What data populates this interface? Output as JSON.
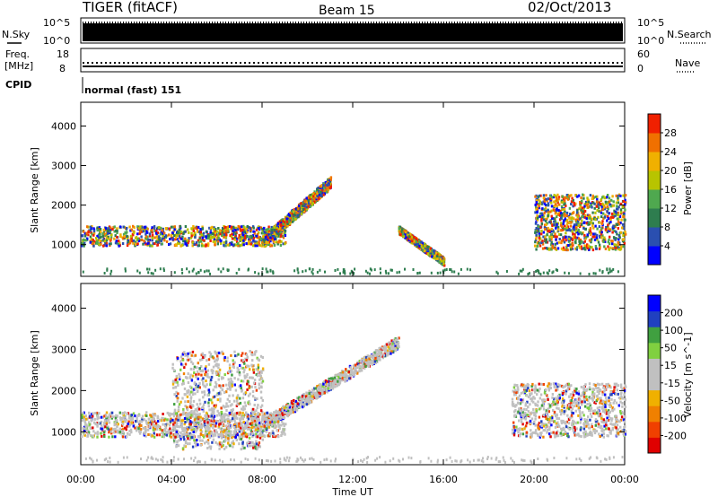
{
  "header": {
    "title": "TIGER (fitACF)",
    "beam": "Beam 15",
    "date": "02/Oct/2013"
  },
  "strips": {
    "nsky_label": "N.Sky",
    "nsky_ticks": [
      "10^5",
      "10^0"
    ],
    "nsearch_label": "N.Search",
    "nsearch_ticks": [
      "10^5",
      "10^0"
    ],
    "freq_label": "Freq.",
    "freq_unit": "[MHz]",
    "freq_ticks": [
      "18",
      "8"
    ],
    "nave_label": "Nave",
    "nave_ticks": [
      "60",
      "0"
    ],
    "cpid_label": "CPID",
    "cpid_text": "normal (fast) 151"
  },
  "chart_data": [
    {
      "type": "heatmap",
      "name": "power-panel",
      "ylabel": "Slant Range [km]",
      "yticks": [
        "1000",
        "2000",
        "3000",
        "4000"
      ],
      "ylim": [
        200,
        4600
      ],
      "xlim_hours": [
        0,
        24
      ],
      "colorbar": {
        "label": "Power [dB]",
        "ticks": [
          "28",
          "24",
          "20",
          "16",
          "12",
          "8",
          "4"
        ],
        "colors": [
          "#0000ff",
          "#2a4fb0",
          "#2e7d4f",
          "#4fa84f",
          "#b8c400",
          "#f0b000",
          "#f07000",
          "#f02000"
        ]
      },
      "features": [
        {
          "label": "band",
          "t_hours": [
            0,
            9
          ],
          "range_km": [
            1000,
            1500
          ]
        },
        {
          "label": "rising arc",
          "t_hours": [
            8,
            11
          ],
          "range_km": [
            1100,
            2600
          ]
        },
        {
          "label": "arc",
          "t_hours": [
            14,
            16
          ],
          "range_km": [
            600,
            1400
          ]
        },
        {
          "label": "late band",
          "t_hours": [
            20,
            24
          ],
          "range_km": [
            900,
            2300
          ]
        }
      ]
    },
    {
      "type": "heatmap",
      "name": "velocity-panel",
      "ylabel": "Slant Range [km]",
      "yticks": [
        "1000",
        "2000",
        "3000",
        "4000"
      ],
      "ylim": [
        200,
        4600
      ],
      "xlim_hours": [
        0,
        24
      ],
      "xticks": [
        "00:00",
        "04:00",
        "08:00",
        "12:00",
        "16:00",
        "20:00",
        "00:00"
      ],
      "xlabel": "Time UT",
      "colorbar": {
        "label": "Velocity [m s^-1]",
        "ticks": [
          "200",
          "100",
          "50",
          "15",
          "-15",
          "-50",
          "-100",
          "-200"
        ],
        "colors": [
          "#e00000",
          "#f04000",
          "#f08000",
          "#f0b000",
          "#c0c0c0",
          "#c0c0c0",
          "#80d040",
          "#40a040",
          "#2040c0",
          "#0000ff"
        ]
      },
      "features": [
        {
          "label": "band",
          "t_hours": [
            0,
            9
          ],
          "range_km": [
            900,
            1500
          ]
        },
        {
          "label": "scatter",
          "t_hours": [
            4,
            8
          ],
          "range_km": [
            600,
            3000
          ]
        },
        {
          "label": "rising arc",
          "t_hours": [
            8,
            14
          ],
          "range_km": [
            1200,
            3200
          ]
        },
        {
          "label": "late band",
          "t_hours": [
            19,
            24
          ],
          "range_km": [
            900,
            2200
          ]
        }
      ]
    }
  ]
}
